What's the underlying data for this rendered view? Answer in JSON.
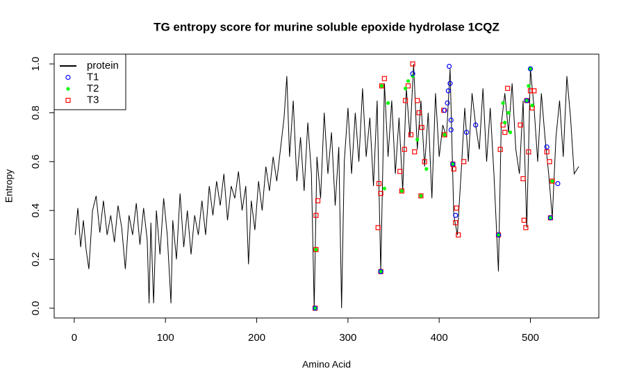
{
  "chart_data": {
    "type": "line",
    "title": "TG entropy score for  murine soluble epoxide hydrolase 1CQZ",
    "x_label": "Amino Acid",
    "y_label": "Entropy",
    "xlim": [
      -22,
      575
    ],
    "ylim": [
      -0.04,
      1.04
    ],
    "xticks": [
      0,
      100,
      200,
      300,
      400,
      500
    ],
    "yticks": [
      {
        "value": 0,
        "label": "0.0"
      },
      0.2,
      0.4,
      0.6,
      0.8,
      {
        "value": 1,
        "label": "1.0"
      }
    ],
    "legend": "topleft",
    "series": [
      {
        "name": "protein",
        "color": "#000000",
        "marker": "line",
        "x": [
          1,
          4,
          7,
          10,
          13,
          16,
          20,
          24,
          28,
          32,
          36,
          40,
          44,
          48,
          52,
          56,
          60,
          64,
          68,
          72,
          76,
          80,
          82,
          84,
          87,
          90,
          94,
          98,
          102,
          106,
          108,
          112,
          116,
          120,
          124,
          128,
          132,
          136,
          140,
          144,
          148,
          152,
          156,
          160,
          164,
          168,
          172,
          176,
          180,
          184,
          188,
          191,
          194,
          198,
          202,
          206,
          210,
          214,
          218,
          222,
          226,
          230,
          233,
          236,
          240,
          244,
          248,
          252,
          256,
          260,
          263,
          266,
          270,
          274,
          278,
          282,
          286,
          290,
          293,
          296,
          300,
          304,
          308,
          312,
          316,
          320,
          324,
          328,
          332,
          336,
          340,
          344,
          348,
          352,
          356,
          360,
          364,
          368,
          372,
          376,
          380,
          384,
          388,
          392,
          396,
          400,
          404,
          408,
          412,
          416,
          420,
          424,
          428,
          432,
          436,
          440,
          444,
          448,
          452,
          456,
          460,
          465,
          468,
          472,
          476,
          480,
          484,
          488,
          492,
          496,
          500,
          504,
          508,
          512,
          516,
          520,
          524,
          528,
          532,
          536,
          540,
          544,
          548,
          553
        ],
        "values": [
          0.3,
          0.41,
          0.25,
          0.36,
          0.24,
          0.16,
          0.4,
          0.46,
          0.31,
          0.44,
          0.3,
          0.38,
          0.27,
          0.42,
          0.33,
          0.16,
          0.38,
          0.3,
          0.43,
          0.26,
          0.41,
          0.28,
          0.02,
          0.35,
          0.02,
          0.4,
          0.22,
          0.45,
          0.3,
          0.02,
          0.36,
          0.2,
          0.47,
          0.25,
          0.4,
          0.22,
          0.38,
          0.3,
          0.44,
          0.3,
          0.5,
          0.38,
          0.52,
          0.42,
          0.55,
          0.36,
          0.5,
          0.45,
          0.56,
          0.4,
          0.5,
          0.18,
          0.44,
          0.32,
          0.52,
          0.4,
          0.58,
          0.48,
          0.62,
          0.52,
          0.65,
          0.78,
          0.95,
          0.62,
          0.85,
          0.52,
          0.7,
          0.48,
          0.76,
          0.55,
          0.0,
          0.62,
          0.45,
          0.8,
          0.55,
          0.72,
          0.42,
          0.66,
          0.0,
          0.6,
          0.82,
          0.55,
          0.8,
          0.6,
          0.9,
          0.62,
          0.78,
          0.5,
          0.85,
          0.15,
          0.92,
          0.62,
          0.85,
          0.55,
          0.78,
          0.48,
          0.9,
          0.7,
          1.0,
          0.65,
          0.85,
          0.58,
          0.8,
          0.45,
          0.88,
          0.62,
          0.75,
          0.7,
          0.98,
          0.38,
          0.3,
          0.55,
          0.82,
          0.6,
          0.88,
          0.75,
          0.65,
          0.9,
          0.6,
          0.82,
          0.55,
          0.15,
          0.75,
          0.88,
          0.72,
          0.92,
          0.65,
          0.55,
          0.85,
          0.33,
          0.98,
          0.82,
          0.6,
          0.88,
          0.7,
          0.55,
          0.37,
          0.7,
          0.85,
          0.62,
          0.95,
          0.78,
          0.55,
          0.58
        ]
      },
      {
        "name": "T1",
        "color": "#0000ff",
        "marker": "circle",
        "x": [
          264,
          336,
          371,
          406,
          409,
          410,
          411,
          412,
          413,
          413,
          415,
          418,
          430,
          440,
          465,
          496,
          500,
          518,
          522,
          530
        ],
        "values": [
          0.0,
          0.15,
          0.96,
          0.81,
          0.84,
          0.89,
          0.99,
          0.92,
          0.77,
          0.73,
          0.59,
          0.38,
          0.72,
          0.75,
          0.3,
          0.85,
          0.98,
          0.66,
          0.37,
          0.51
        ]
      },
      {
        "name": "T2",
        "color": "#00ff00",
        "marker": "dot",
        "x": [
          264,
          265,
          336,
          337,
          340,
          344,
          359,
          363,
          366,
          371,
          376,
          380,
          386,
          406,
          415,
          465,
          470,
          472,
          476,
          478,
          496,
          498,
          500,
          502,
          522,
          524
        ],
        "values": [
          0.0,
          0.24,
          0.15,
          0.91,
          0.49,
          0.84,
          0.48,
          0.9,
          0.93,
          0.95,
          0.69,
          0.46,
          0.57,
          0.71,
          0.59,
          0.3,
          0.84,
          0.76,
          0.8,
          0.72,
          0.85,
          0.91,
          0.98,
          0.83,
          0.37,
          0.52
        ]
      },
      {
        "name": "T3",
        "color": "#ff0000",
        "marker": "square",
        "x": [
          264,
          265,
          265,
          267,
          333,
          334,
          336,
          336,
          337,
          340,
          357,
          359,
          362,
          363,
          366,
          369,
          371,
          373,
          376,
          378,
          380,
          381,
          384,
          405,
          406,
          415,
          416,
          418,
          419,
          421,
          427,
          465,
          467,
          470,
          472,
          475,
          489,
          492,
          493,
          495,
          496,
          498,
          500,
          502,
          504,
          518,
          521,
          522,
          524
        ],
        "values": [
          0.0,
          0.24,
          0.38,
          0.44,
          0.33,
          0.51,
          0.15,
          0.47,
          0.91,
          0.94,
          0.56,
          0.48,
          0.65,
          0.85,
          0.91,
          0.71,
          1.0,
          0.64,
          0.85,
          0.8,
          0.46,
          0.74,
          0.6,
          0.81,
          0.71,
          0.59,
          0.57,
          0.35,
          0.41,
          0.3,
          0.6,
          0.3,
          0.65,
          0.75,
          0.72,
          0.9,
          0.75,
          0.53,
          0.36,
          0.33,
          0.85,
          0.64,
          0.89,
          0.82,
          0.89,
          0.64,
          0.6,
          0.37,
          0.52
        ]
      }
    ]
  }
}
